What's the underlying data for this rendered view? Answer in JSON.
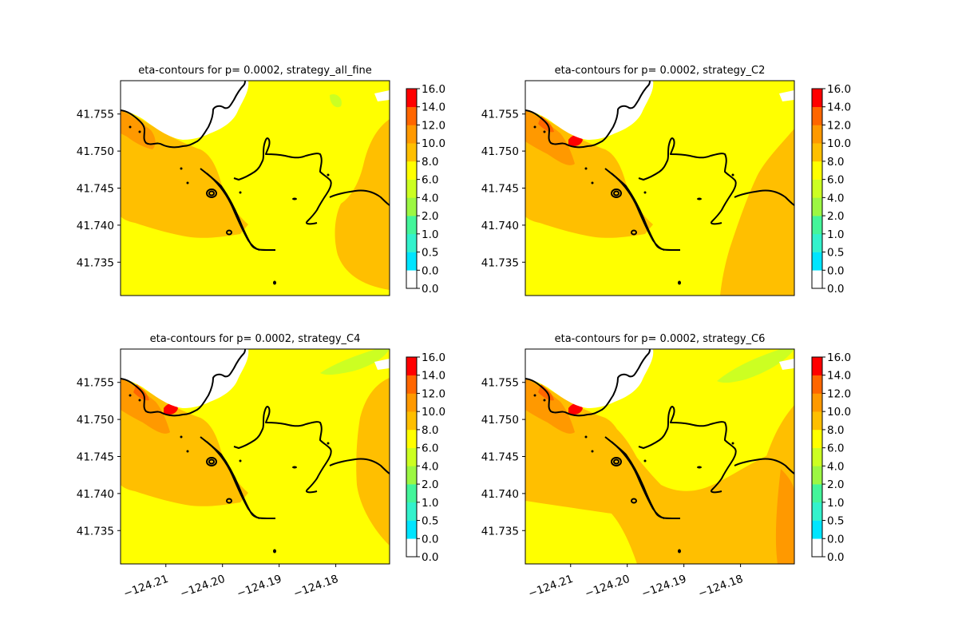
{
  "colorbar": {
    "levels": [
      "0.0",
      "0.0",
      "0.5",
      "1.0",
      "2.0",
      "4.0",
      "6.0",
      "8.0",
      "10.0",
      "12.0",
      "14.0",
      "16.0"
    ],
    "colors": [
      "#ffffff",
      "#00e5ff",
      "#33f2cc",
      "#44f59a",
      "#9cf743",
      "#ccff22",
      "#ffff00",
      "#ffbf00",
      "#ff9900",
      "#ff6600",
      "#ff0000"
    ]
  },
  "chart_data": [
    {
      "type": "heatmap",
      "title": "eta-contours for p= 0.0002, strategy_all_fine",
      "xlim": [
        -124.218,
        -124.1705
      ],
      "ylim": [
        41.7305,
        41.7595
      ],
      "x_ticks": [],
      "y_ticks": [
        "41.735",
        "41.740",
        "41.745",
        "41.750",
        "41.755"
      ],
      "colorbar_range": [
        0.0,
        16.0
      ]
    },
    {
      "type": "heatmap",
      "title": "eta-contours for p= 0.0002, strategy_C2",
      "xlim": [
        -124.218,
        -124.1705
      ],
      "ylim": [
        41.7305,
        41.7595
      ],
      "x_ticks": [],
      "y_ticks": [
        "41.735",
        "41.740",
        "41.745",
        "41.750",
        "41.755"
      ],
      "colorbar_range": [
        0.0,
        16.0
      ]
    },
    {
      "type": "heatmap",
      "title": "eta-contours for p= 0.0002, strategy_C4",
      "xlim": [
        -124.218,
        -124.1705
      ],
      "ylim": [
        41.7305,
        41.7595
      ],
      "x_ticks": [
        "−124.21",
        "−124.20",
        "−124.19",
        "−124.18"
      ],
      "y_ticks": [
        "41.735",
        "41.740",
        "41.745",
        "41.750",
        "41.755"
      ],
      "colorbar_range": [
        0.0,
        16.0
      ]
    },
    {
      "type": "heatmap",
      "title": "eta-contours for p= 0.0002, strategy_C6",
      "xlim": [
        -124.218,
        -124.1705
      ],
      "ylim": [
        41.7305,
        41.7595
      ],
      "x_ticks": [
        "−124.21",
        "−124.20",
        "−124.19",
        "−124.18"
      ],
      "y_ticks": [
        "41.735",
        "41.740",
        "41.745",
        "41.750",
        "41.755"
      ],
      "colorbar_range": [
        0.0,
        16.0
      ]
    }
  ]
}
